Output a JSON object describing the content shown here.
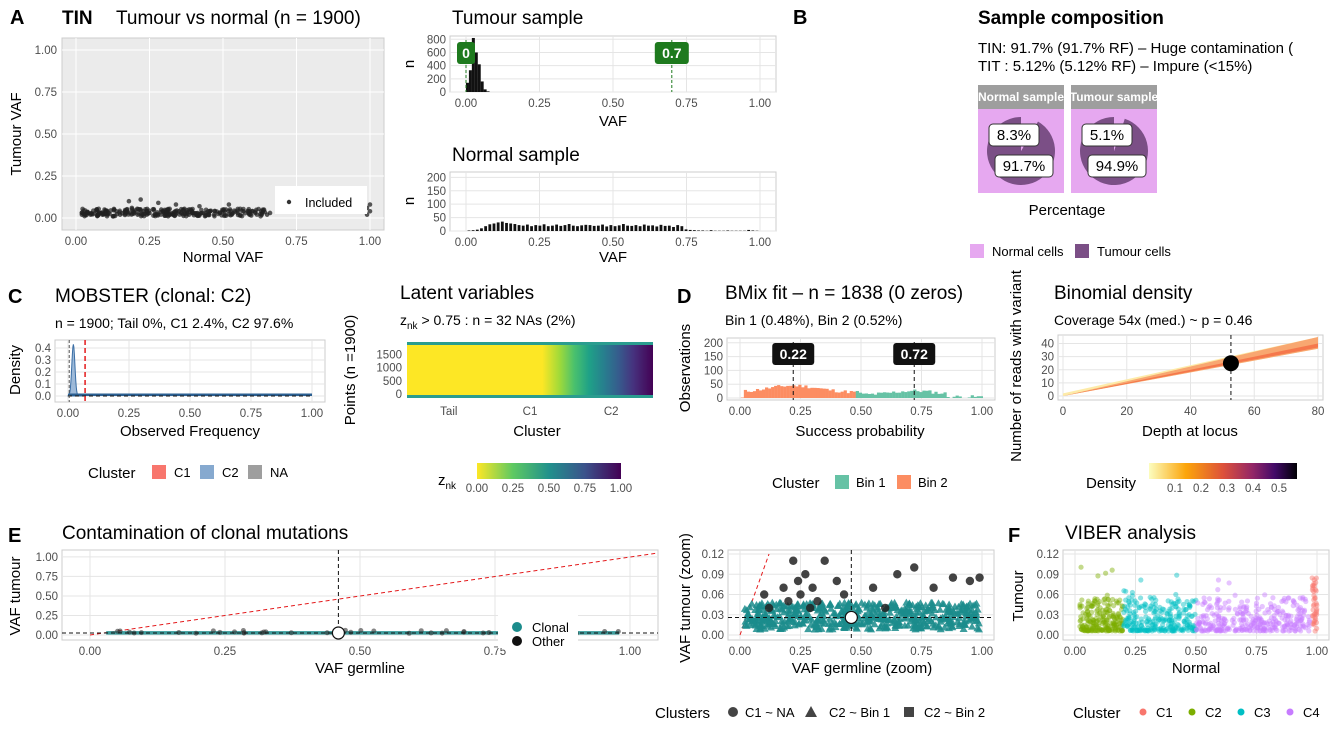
{
  "panel_letters": {
    "A": "A",
    "B": "B",
    "C": "C",
    "D": "D",
    "E": "E",
    "F": "F"
  },
  "colors": {
    "grey": "#4d4d4d",
    "green": "#1e7a1e",
    "red": "#e41a1c",
    "teal": "#1b8c8c",
    "c1": "#f8766d",
    "c2": "#7cae00",
    "c3": "#00bfc4",
    "c4": "#c77cff",
    "bin1": "#66c2a5",
    "bin2": "#fc8d62",
    "normal_cells": "#e6a8f0",
    "tumour_cells": "#7b4f86"
  },
  "chart_data": [
    {
      "id": "tin_scatter",
      "type": "scatter",
      "sample_tag": "TIN",
      "title": "Tumour vs normal (n =  1900)",
      "xlabel": "Normal VAF",
      "ylabel": "Tumour VAF",
      "xlim": [
        0,
        1
      ],
      "ylim": [
        0,
        1
      ],
      "xticks": [
        "0.00",
        "0.25",
        "0.50",
        "0.75",
        "1.00"
      ],
      "yticks": [
        "0.00",
        "0.25",
        "0.50",
        "0.75",
        "1.00"
      ],
      "legend_label": "Included",
      "points": [
        [
          0.02,
          0.02
        ],
        [
          0.04,
          0.03
        ],
        [
          0.05,
          0.02
        ],
        [
          0.07,
          0.04
        ],
        [
          0.09,
          0.02
        ],
        [
          0.11,
          0.03
        ],
        [
          0.13,
          0.05
        ],
        [
          0.15,
          0.02
        ],
        [
          0.17,
          0.03
        ],
        [
          0.19,
          0.06
        ],
        [
          0.21,
          0.02
        ],
        [
          0.23,
          0.04
        ],
        [
          0.25,
          0.03
        ],
        [
          0.27,
          0.02
        ],
        [
          0.29,
          0.05
        ],
        [
          0.31,
          0.03
        ],
        [
          0.33,
          0.02
        ],
        [
          0.35,
          0.04
        ],
        [
          0.37,
          0.03
        ],
        [
          0.39,
          0.05
        ],
        [
          0.41,
          0.02
        ],
        [
          0.43,
          0.03
        ],
        [
          0.45,
          0.04
        ],
        [
          0.47,
          0.02
        ],
        [
          0.49,
          0.03
        ],
        [
          0.51,
          0.05
        ],
        [
          0.53,
          0.02
        ],
        [
          0.55,
          0.03
        ],
        [
          0.57,
          0.04
        ],
        [
          0.59,
          0.02
        ],
        [
          0.61,
          0.03
        ],
        [
          0.63,
          0.04
        ],
        [
          0.65,
          0.02
        ],
        [
          0.66,
          0.03
        ],
        [
          0.22,
          0.11
        ],
        [
          0.28,
          0.09
        ],
        [
          0.34,
          0.08
        ],
        [
          0.18,
          0.1
        ],
        [
          0.42,
          0.07
        ],
        [
          0.52,
          0.08
        ],
        [
          0.99,
          0.06
        ],
        [
          1.0,
          0.04
        ],
        [
          1.0,
          0.08
        ],
        [
          0.99,
          0.02
        ]
      ]
    },
    {
      "id": "tumour_hist",
      "type": "bar",
      "title": "Tumour sample",
      "xlabel": "VAF",
      "ylabel": "n",
      "xlim": [
        0,
        1
      ],
      "ylim": [
        0,
        850
      ],
      "xticks": [
        "0.00",
        "0.25",
        "0.50",
        "0.75",
        "1.00"
      ],
      "yticks": [
        "0",
        "200",
        "400",
        "600",
        "800"
      ],
      "bins_x": [
        0.005,
        0.015,
        0.025,
        0.035,
        0.045,
        0.055,
        0.065,
        0.075
      ],
      "values": [
        140,
        330,
        820,
        600,
        420,
        160,
        40,
        10
      ],
      "markers": [
        {
          "x": 0.0,
          "label": "0"
        },
        {
          "x": 0.7,
          "label": "0.7"
        }
      ]
    },
    {
      "id": "normal_hist",
      "type": "bar",
      "title": "Normal sample",
      "xlabel": "VAF",
      "ylabel": "n",
      "xlim": [
        0,
        1
      ],
      "ylim": [
        0,
        220
      ],
      "xticks": [
        "0.00",
        "0.25",
        "0.50",
        "0.75",
        "1.00"
      ],
      "yticks": [
        "0",
        "50",
        "100",
        "150",
        "200"
      ],
      "values": [
        2,
        3,
        5,
        10,
        18,
        25,
        28,
        32,
        35,
        30,
        28,
        26,
        22,
        20,
        24,
        18,
        22,
        20,
        25,
        18,
        20,
        24,
        19,
        22,
        26,
        20,
        18,
        21,
        23,
        22,
        19,
        20,
        24,
        17,
        22,
        18,
        21,
        26,
        20,
        19,
        22,
        18,
        24,
        20,
        21,
        17,
        23,
        19,
        20,
        15,
        22,
        18,
        6,
        4,
        3,
        2,
        2,
        1,
        3,
        1,
        1,
        1,
        2,
        1,
        1,
        1,
        1,
        4,
        2,
        1
      ]
    },
    {
      "id": "sample_composition",
      "type": "pie",
      "title": "Sample composition",
      "line1": "TIN: 91.7% (91.7% RF) – Huge contamination (",
      "line2": "TIT : 5.12% (5.12% RF) – Impure (<15%)",
      "xlabel": "Percentage",
      "facets": [
        {
          "name": "Normal sample",
          "normal_label": "8.3%",
          "tumour_label": "91.7%",
          "normal": 8.3,
          "tumour": 91.7
        },
        {
          "name": "Tumour sample",
          "normal_label": "5.1%",
          "tumour_label": "94.9%",
          "normal": 5.1,
          "tumour": 94.9
        }
      ],
      "legend": [
        "Normal cells",
        "Tumour cells"
      ]
    },
    {
      "id": "mobster",
      "type": "area",
      "title": "MOBSTER (clonal: C2)",
      "subtitle": "n = 1900; Tail 0%, C1 2.4%, C2 97.6%",
      "xlabel": "Observed Frequency",
      "ylabel": "Density",
      "xlim": [
        0,
        1
      ],
      "ylim": [
        0,
        0.45
      ],
      "xticks": [
        "0.00",
        "0.25",
        "0.50",
        "0.75",
        "1.00"
      ],
      "yticks": [
        "0.0",
        "0.1",
        "0.2",
        "0.3",
        "0.4"
      ],
      "legend_title": "Cluster",
      "legend": [
        "C1",
        "C2",
        "NA"
      ]
    },
    {
      "id": "latent",
      "type": "heatmap",
      "title": "Latent variables",
      "subtitle_prefix": "z",
      "subtitle_sub": "nk",
      "subtitle_rest": " > 0.75 : n = 32  NAs (2%)",
      "xlabel": "Cluster",
      "ylabel": "Points (n =1900)",
      "categories": [
        "Tail",
        "C1",
        "C2"
      ],
      "yticks": [
        "0",
        "500",
        "1000",
        "1500"
      ],
      "colorbar_title_prefix": "z",
      "colorbar_title_sub": "nk",
      "colorbar_ticks": [
        "0.00",
        "0.25",
        "0.50",
        "0.75",
        "1.00"
      ]
    },
    {
      "id": "bmix",
      "type": "bar",
      "title": "BMix fit – n = 1838 (0 zeros)",
      "subtitle": "Bin 1 (0.48%), Bin 2 (0.52%)",
      "xlabel": "Success probability",
      "ylabel": "Observations",
      "xlim": [
        0,
        1
      ],
      "ylim": [
        0,
        210
      ],
      "xticks": [
        "0.00",
        "0.25",
        "0.50",
        "0.75",
        "1.00"
      ],
      "yticks": [
        "0",
        "50",
        "100",
        "150",
        "200"
      ],
      "markers": [
        {
          "x": 0.22,
          "label": "0.22"
        },
        {
          "x": 0.72,
          "label": "0.72"
        }
      ],
      "legend_title": "Cluster",
      "legend": [
        "Bin 1",
        "Bin 2"
      ]
    },
    {
      "id": "binomial",
      "type": "heatmap",
      "title": "Binomial density",
      "subtitle": "Coverage 54x (med.) ~ p = 0.46",
      "xlabel": "Depth at locus",
      "ylabel": "Number of reads with variant",
      "xlim": [
        0,
        85
      ],
      "ylim": [
        0,
        45
      ],
      "xticks": [
        "0",
        "20",
        "40",
        "60",
        "80"
      ],
      "yticks": [
        "0",
        "10",
        "20",
        "30",
        "40"
      ],
      "point": {
        "x": 54,
        "y": 25
      },
      "colorbar_title": "Density",
      "colorbar_ticks": [
        "0.1",
        "0.2",
        "0.3",
        "0.4",
        "0.5"
      ]
    },
    {
      "id": "contamination",
      "type": "scatter",
      "title": "Contamination of clonal mutations",
      "xlabel": "VAF germline",
      "ylabel": "VAF tumour",
      "xlim": [
        0,
        1
      ],
      "ylim": [
        0,
        1.05
      ],
      "xticks": [
        "0.00",
        "0.25",
        "0.50",
        "0.75",
        "1.00"
      ],
      "yticks": [
        "0.00",
        "0.25",
        "0.50",
        "0.75",
        "1.00"
      ],
      "legend": [
        "Clonal",
        "Other"
      ],
      "point": {
        "x": 0.46,
        "y": 0.026
      }
    },
    {
      "id": "contamination_zoom",
      "type": "scatter",
      "xlabel": "VAF germline (zoom)",
      "ylabel": "VAF tumour (zoom)",
      "xlim": [
        0,
        1
      ],
      "ylim": [
        0,
        0.12
      ],
      "xticks": [
        "0.00",
        "0.25",
        "0.50",
        "0.75",
        "1.00"
      ],
      "yticks": [
        "0.00",
        "0.03",
        "0.06",
        "0.09",
        "0.12"
      ],
      "point": {
        "x": 0.46,
        "y": 0.026
      },
      "other_points": [
        [
          0.1,
          0.06
        ],
        [
          0.12,
          0.04
        ],
        [
          0.18,
          0.07
        ],
        [
          0.2,
          0.05
        ],
        [
          0.22,
          0.11
        ],
        [
          0.24,
          0.08
        ],
        [
          0.25,
          0.06
        ],
        [
          0.27,
          0.09
        ],
        [
          0.29,
          0.04
        ],
        [
          0.3,
          0.07
        ],
        [
          0.32,
          0.05
        ],
        [
          0.35,
          0.11
        ],
        [
          0.4,
          0.08
        ],
        [
          0.43,
          0.06
        ],
        [
          0.55,
          0.07
        ],
        [
          0.6,
          0.04
        ],
        [
          0.65,
          0.09
        ],
        [
          0.72,
          0.1
        ],
        [
          0.8,
          0.07
        ],
        [
          0.88,
          0.085
        ],
        [
          0.95,
          0.08
        ],
        [
          0.99,
          0.085
        ]
      ],
      "legend_title": "Clusters",
      "legend": [
        "C1 ~ NA",
        "C2 ~ Bin 1",
        "C2 ~ Bin 2"
      ]
    },
    {
      "id": "viber",
      "type": "scatter",
      "title": "VIBER analysis",
      "xlabel": "Normal",
      "ylabel": "Tumour",
      "xlim": [
        0,
        1
      ],
      "ylim": [
        0,
        0.12
      ],
      "xticks": [
        "0.00",
        "0.25",
        "0.50",
        "0.75",
        "1.00"
      ],
      "yticks": [
        "0.00",
        "0.03",
        "0.06",
        "0.09",
        "0.12"
      ],
      "legend_title": "Cluster",
      "legend": [
        "C1",
        "C2",
        "C3",
        "C4"
      ],
      "cluster_ranges": [
        [
          0.98,
          1.0
        ],
        [
          0.02,
          0.2
        ],
        [
          0.2,
          0.5
        ],
        [
          0.5,
          0.97
        ]
      ]
    }
  ]
}
